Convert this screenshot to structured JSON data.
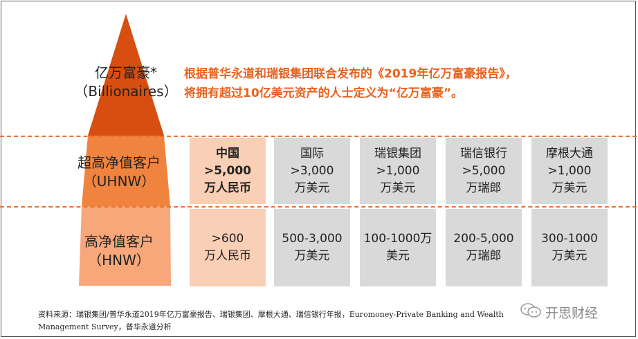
{
  "tiers": {
    "billionaires": {
      "line1": "亿万富豪*",
      "line2": "（Billionaires）"
    },
    "uhnw": {
      "line1": "超高净值客户",
      "line2": "（UHNW）"
    },
    "hnw": {
      "line1": "高净值客户",
      "line2": "（HNW）"
    }
  },
  "description": {
    "line1": "根据普华永道和瑞银集团联合发布的《2019年亿万富豪报告》，",
    "line2": "将拥有超过10亿美元资产的人士定义为“亿万富豪”。"
  },
  "columns": [
    {
      "header": "中国",
      "uhnw": [
        ">5,000",
        "万人民币"
      ],
      "hnw": [
        ">600",
        "万人民币"
      ]
    },
    {
      "header": "国际",
      "uhnw": [
        ">3,000",
        "万美元"
      ],
      "hnw": [
        "500-3,000",
        "万美元"
      ]
    },
    {
      "header": "瑞银集团",
      "uhnw": [
        ">1,000",
        "万美元"
      ],
      "hnw": [
        "100-1000万",
        "美元"
      ]
    },
    {
      "header": "瑞信银行",
      "uhnw": [
        ">5,000",
        "万瑞郎"
      ],
      "hnw": [
        "200-5,000",
        "万瑞郎"
      ]
    },
    {
      "header": "摩根大通",
      "uhnw": [
        ">1,000",
        "万美元"
      ],
      "hnw": [
        "300-1000",
        "万美元"
      ]
    }
  ],
  "source": {
    "line1": "资料来源：瑞银集团/普华永道2019年亿万富豪报告、瑞银集团、摩根大通、瑞信银行年报，Euromoney-Private Banking and Wealth",
    "line2": "Management Survey，普华永道分析"
  },
  "watermark": {
    "text": "开思财经"
  },
  "colors": {
    "pyramid_top": "#d84e10",
    "pyramid_mid": "#f0843f",
    "pyramid_bottom": "#f8a77a",
    "accent_text": "#e8611e",
    "china_cell": "#f9cfb6",
    "other_cell": "#d9d9d9"
  }
}
